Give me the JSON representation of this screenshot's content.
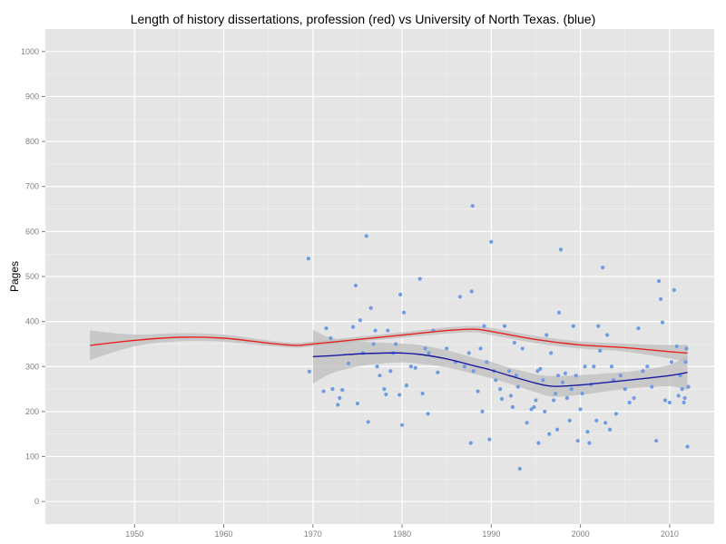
{
  "chart_data": {
    "type": "scatter",
    "title": "Length of history dissertations, profession (red) vs University of North Texas. (blue)",
    "xlabel": "",
    "ylabel": "Pages",
    "xlim": [
      1940,
      2015
    ],
    "ylim": [
      -50,
      1050
    ],
    "x_ticks": [
      1950,
      1960,
      1970,
      1980,
      1990,
      2000,
      2010
    ],
    "y_ticks": [
      0,
      100,
      200,
      300,
      400,
      500,
      600,
      700,
      800,
      900,
      1000
    ],
    "grid": true,
    "colors": {
      "panel": "#e5e5e5",
      "grid_major": "#ffffff",
      "grid_minor": "#f2f2f2",
      "points": "#6f9be0",
      "profession": "#e8231e",
      "unt": "#1a1aa0",
      "band": "#bdbdbd"
    },
    "series": [
      {
        "name": "profession",
        "kind": "smooth",
        "x": [
          1945,
          1950,
          1955,
          1960,
          1965,
          1968,
          1970,
          1975,
          1980,
          1985,
          1988,
          1990,
          1995,
          2000,
          2005,
          2010,
          2012
        ],
        "y": [
          347,
          358,
          365,
          363,
          352,
          347,
          350,
          360,
          370,
          380,
          383,
          378,
          360,
          348,
          342,
          333,
          330
        ],
        "lower": [
          314,
          345,
          356,
          355,
          346,
          342,
          345,
          355,
          364,
          373,
          376,
          370,
          352,
          340,
          333,
          318,
          311
        ],
        "upper": [
          380,
          371,
          374,
          371,
          358,
          353,
          356,
          366,
          376,
          387,
          390,
          386,
          368,
          356,
          351,
          348,
          349
        ]
      },
      {
        "name": "University of North Texas",
        "kind": "smooth",
        "x": [
          1970,
          1972,
          1975,
          1978,
          1980,
          1982,
          1985,
          1988,
          1990,
          1992,
          1995,
          1997,
          2000,
          2003,
          2006,
          2010,
          2012
        ],
        "y": [
          322,
          324,
          328,
          330,
          330,
          327,
          317,
          302,
          292,
          280,
          263,
          256,
          259,
          265,
          271,
          280,
          287
        ],
        "lower": [
          262,
          284,
          300,
          307,
          309,
          306,
          298,
          284,
          274,
          262,
          243,
          233,
          237,
          245,
          252,
          256,
          248
        ],
        "upper": [
          382,
          364,
          356,
          353,
          351,
          348,
          336,
          320,
          310,
          298,
          283,
          279,
          281,
          285,
          290,
          304,
          326
        ]
      },
      {
        "name": "University of North Texas dissertations",
        "kind": "points",
        "points": [
          [
            1969.5,
            540
          ],
          [
            1969.6,
            289
          ],
          [
            1971.2,
            245
          ],
          [
            1971.5,
            385
          ],
          [
            1972,
            363
          ],
          [
            1972.2,
            250
          ],
          [
            1972.8,
            215
          ],
          [
            1973,
            230
          ],
          [
            1973.3,
            248
          ],
          [
            1974,
            307
          ],
          [
            1974.5,
            388
          ],
          [
            1974.8,
            480
          ],
          [
            1975,
            218
          ],
          [
            1975.3,
            403
          ],
          [
            1975.6,
            330
          ],
          [
            1976,
            590
          ],
          [
            1976.2,
            177
          ],
          [
            1976.5,
            430
          ],
          [
            1976.8,
            350
          ],
          [
            1977,
            380
          ],
          [
            1977.2,
            300
          ],
          [
            1977.5,
            280
          ],
          [
            1978,
            250
          ],
          [
            1978.2,
            238
          ],
          [
            1978.4,
            380
          ],
          [
            1978.7,
            290
          ],
          [
            1979,
            330
          ],
          [
            1979.3,
            350
          ],
          [
            1979.7,
            237
          ],
          [
            1979.8,
            460
          ],
          [
            1980,
            170
          ],
          [
            1980.2,
            420
          ],
          [
            1980.5,
            258
          ],
          [
            1981,
            300
          ],
          [
            1981.5,
            297
          ],
          [
            1982,
            495
          ],
          [
            1982.3,
            240
          ],
          [
            1982.6,
            340
          ],
          [
            1982.9,
            195
          ],
          [
            1983,
            330
          ],
          [
            1983.5,
            380
          ],
          [
            1984,
            287
          ],
          [
            1985,
            340
          ],
          [
            1986,
            310
          ],
          [
            1986.5,
            455
          ],
          [
            1987,
            300
          ],
          [
            1987.5,
            330
          ],
          [
            1987.7,
            130
          ],
          [
            1987.8,
            467
          ],
          [
            1987.9,
            657
          ],
          [
            1988,
            290
          ],
          [
            1988.5,
            245
          ],
          [
            1988.8,
            340
          ],
          [
            1989,
            200
          ],
          [
            1989.2,
            390
          ],
          [
            1989.5,
            310
          ],
          [
            1989.8,
            138
          ],
          [
            1990,
            577
          ],
          [
            1990.3,
            290
          ],
          [
            1990.5,
            270
          ],
          [
            1991,
            250
          ],
          [
            1991.2,
            228
          ],
          [
            1991.5,
            390
          ],
          [
            1992,
            290
          ],
          [
            1992.2,
            235
          ],
          [
            1992.4,
            210
          ],
          [
            1992.6,
            353
          ],
          [
            1992.8,
            280
          ],
          [
            1993,
            255
          ],
          [
            1993.2,
            73
          ],
          [
            1993.5,
            340
          ],
          [
            1994,
            175
          ],
          [
            1994.5,
            205
          ],
          [
            1994.8,
            210
          ],
          [
            1995,
            225
          ],
          [
            1995.2,
            290
          ],
          [
            1995.3,
            130
          ],
          [
            1995.5,
            295
          ],
          [
            1995.8,
            270
          ],
          [
            1996,
            200
          ],
          [
            1996.2,
            370
          ],
          [
            1996.5,
            150
          ],
          [
            1996.7,
            330
          ],
          [
            1997,
            225
          ],
          [
            1997.2,
            240
          ],
          [
            1997.4,
            160
          ],
          [
            1997.5,
            280
          ],
          [
            1997.6,
            420
          ],
          [
            1997.8,
            560
          ],
          [
            1998,
            265
          ],
          [
            1998.3,
            285
          ],
          [
            1998.5,
            230
          ],
          [
            1998.8,
            180
          ],
          [
            1999,
            250
          ],
          [
            1999.2,
            390
          ],
          [
            1999.5,
            280
          ],
          [
            1999.7,
            135
          ],
          [
            2000,
            205
          ],
          [
            2000.2,
            240
          ],
          [
            2000.5,
            300
          ],
          [
            2000.8,
            155
          ],
          [
            2001,
            130
          ],
          [
            2001.2,
            260
          ],
          [
            2001.5,
            300
          ],
          [
            2001.8,
            180
          ],
          [
            2002,
            390
          ],
          [
            2002.2,
            335
          ],
          [
            2002.5,
            520
          ],
          [
            2002.8,
            175
          ],
          [
            2003,
            370
          ],
          [
            2003.3,
            160
          ],
          [
            2003.5,
            300
          ],
          [
            2003.7,
            270
          ],
          [
            2004,
            195
          ],
          [
            2004.5,
            280
          ],
          [
            2005,
            250
          ],
          [
            2005.5,
            220
          ],
          [
            2006,
            230
          ],
          [
            2006.5,
            385
          ],
          [
            2007,
            290
          ],
          [
            2007.5,
            300
          ],
          [
            2008,
            255
          ],
          [
            2008.5,
            135
          ],
          [
            2008.8,
            490
          ],
          [
            2009,
            450
          ],
          [
            2009.2,
            398
          ],
          [
            2009.5,
            225
          ],
          [
            2010,
            220
          ],
          [
            2010.2,
            310
          ],
          [
            2010.5,
            470
          ],
          [
            2010.8,
            345
          ],
          [
            2011,
            235
          ],
          [
            2011.2,
            280
          ],
          [
            2011.4,
            250
          ],
          [
            2011.6,
            220
          ],
          [
            2011.7,
            230
          ],
          [
            2011.8,
            310
          ],
          [
            2011.9,
            340
          ],
          [
            2012,
            122
          ],
          [
            2012.1,
            255
          ]
        ]
      }
    ]
  }
}
